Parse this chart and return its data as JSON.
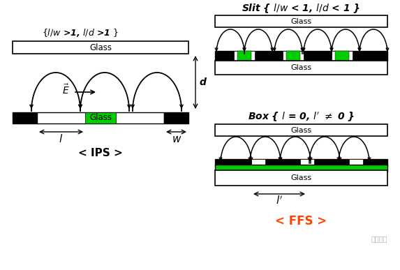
{
  "bg_color": "#ffffff",
  "title_ips": "< IPS >",
  "title_ffs": "< FFS >",
  "title_slit": "Slit { $l/w$ < 1, $l/d$ < 1 }",
  "title_box": "Box { $l$ = 0, $l'$ ≠ 0 }",
  "label_ips_condition": "{$l/w$ >1, $l/d$ >1 }",
  "glass_color": "#ffffff",
  "glass_border": "#000000",
  "black_electrode": "#000000",
  "green_electrode": "#00cc00",
  "arrow_color": "#000000",
  "ffs_color": "#ff4400",
  "ips_color": "#000000"
}
